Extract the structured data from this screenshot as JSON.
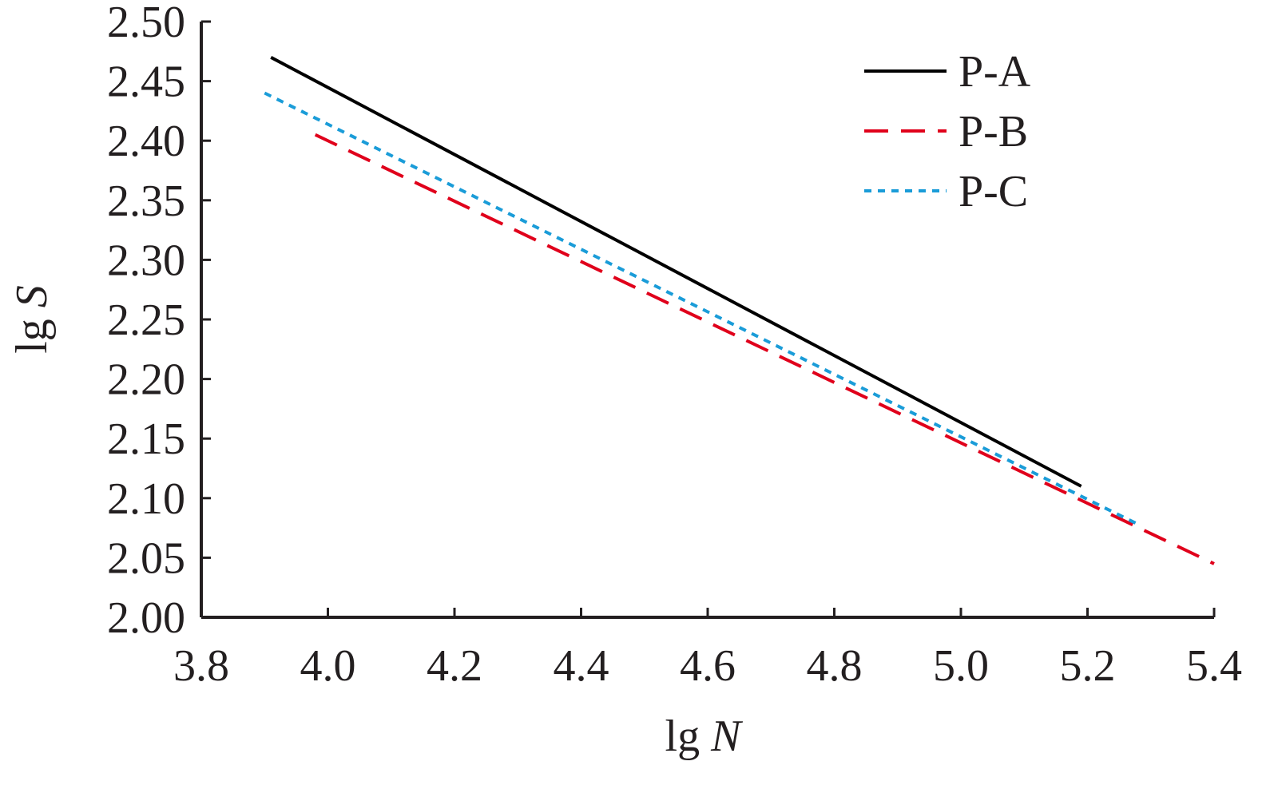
{
  "chart_data": {
    "type": "line",
    "title": "",
    "xlabel": {
      "prefix": "lg ",
      "var": "N"
    },
    "ylabel": {
      "prefix": "lg ",
      "var": "S"
    },
    "xlim": [
      3.8,
      5.4
    ],
    "ylim": [
      2.0,
      2.5
    ],
    "x_ticks": [
      3.8,
      4.0,
      4.2,
      4.4,
      4.6,
      4.8,
      5.0,
      5.2,
      5.4
    ],
    "x_tick_labels": [
      "3.8",
      "4.0",
      "4.2",
      "4.4",
      "4.6",
      "4.8",
      "5.0",
      "5.2",
      "5.4"
    ],
    "y_ticks": [
      2.0,
      2.05,
      2.1,
      2.15,
      2.2,
      2.25,
      2.3,
      2.35,
      2.4,
      2.45,
      2.5
    ],
    "y_tick_labels": [
      "2.00",
      "2.05",
      "2.10",
      "2.15",
      "2.20",
      "2.25",
      "2.30",
      "2.35",
      "2.40",
      "2.45",
      "2.50"
    ],
    "grid": false,
    "legend": "top-right",
    "series": [
      {
        "name": "P-A",
        "style": "solid",
        "color": "#000000",
        "x": [
          3.91,
          5.19
        ],
        "y": [
          2.47,
          2.11
        ]
      },
      {
        "name": "P-B",
        "style": "dashed",
        "color": "#e0001b",
        "x": [
          3.98,
          5.4
        ],
        "y": [
          2.405,
          2.045
        ]
      },
      {
        "name": "P-C",
        "style": "dotted",
        "color": "#1a9cd8",
        "x": [
          3.9,
          5.28
        ],
        "y": [
          2.44,
          2.078
        ]
      }
    ]
  }
}
